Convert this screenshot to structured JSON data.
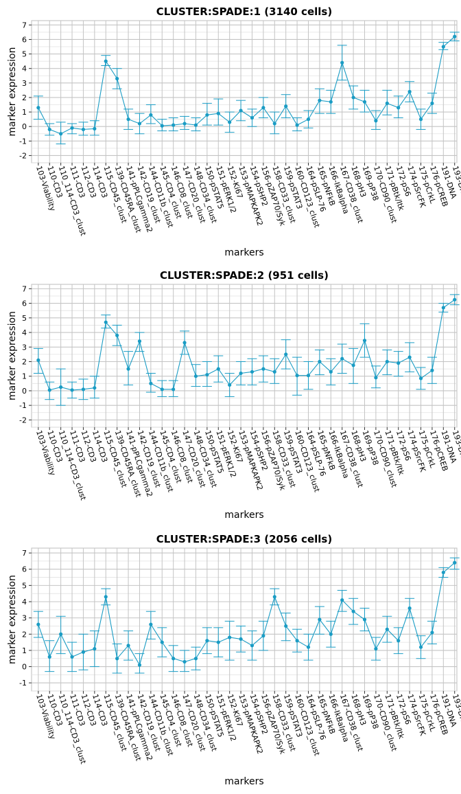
{
  "chart_data": [
    {
      "type": "line",
      "title": "CLUSTER:SPADE:1 (3140 cells)",
      "xlabel": "markers",
      "ylabel": "marker expression",
      "ylim": [
        -2.5,
        7.3
      ],
      "yticks": [
        -2,
        -1,
        0,
        1,
        2,
        3,
        4,
        5,
        6,
        7
      ],
      "grid": true,
      "line_color": "#1a9cc4",
      "categories": [
        "103-Viability",
        "110-CD3",
        "110_114-CD3_clust",
        "111-CD3",
        "112-CD3",
        "114-CD3",
        "115-CD45_clust",
        "139-CD45RA_clust",
        "141-pPLCgamma2",
        "142-CD19_clust",
        "144-CD11b_clust",
        "145-CD4_clust",
        "146-CD8_clust",
        "147-CD20_clust",
        "148-CD34_clust",
        "150-pSTAT5",
        "151-pERK1/2",
        "152-Ki67",
        "153-pMAPKAPK2",
        "154-pSHP2",
        "156-pZAP70/Syk",
        "158-CD33_clust",
        "159-pSTAT3",
        "160-CD123_clust",
        "164-pSLP-76",
        "165-pNFkB",
        "166-IkBalpha",
        "167-CD38_clust",
        "168-pH3",
        "169-pP38",
        "170-CD90_clust",
        "171-pBtk/Itk",
        "172-pS6",
        "174-pSrcFK",
        "175-pCrkL",
        "176-pCREB",
        "191-DNA",
        "193-DNA"
      ],
      "values": [
        1.3,
        -0.2,
        -0.5,
        -0.1,
        -0.2,
        -0.15,
        4.5,
        3.3,
        0.5,
        0.2,
        0.8,
        0.05,
        0.1,
        0.2,
        0.1,
        0.8,
        0.9,
        0.3,
        1.1,
        0.6,
        1.3,
        0.2,
        1.4,
        0.1,
        0.5,
        1.8,
        1.7,
        4.4,
        2.0,
        1.7,
        0.4,
        1.6,
        1.3,
        2.4,
        0.5,
        1.6,
        5.5,
        6.2
      ],
      "err_upper": [
        2.1,
        0.2,
        0.3,
        0.2,
        0.3,
        0.4,
        4.9,
        4.0,
        1.2,
        0.9,
        1.5,
        0.5,
        0.6,
        0.7,
        0.6,
        1.6,
        1.9,
        1.0,
        1.8,
        1.2,
        2.0,
        1.0,
        2.2,
        0.6,
        1.1,
        2.6,
        2.5,
        5.6,
        2.8,
        2.5,
        1.1,
        2.5,
        2.1,
        3.1,
        1.2,
        2.3,
        5.8,
        6.5
      ],
      "err_lower": [
        0.5,
        -0.6,
        -1.2,
        -0.5,
        -0.6,
        -0.6,
        4.2,
        2.6,
        -0.2,
        -0.5,
        0.2,
        -0.3,
        -0.3,
        -0.2,
        -0.3,
        0.1,
        0.1,
        -0.4,
        0.4,
        0.0,
        0.6,
        -0.5,
        0.6,
        -0.3,
        -0.1,
        0.9,
        0.9,
        3.2,
        1.2,
        1.0,
        -0.2,
        0.8,
        0.6,
        1.7,
        -0.2,
        0.9,
        5.3,
        5.9
      ]
    },
    {
      "type": "line",
      "title": "CLUSTER:SPADE:2 (951 cells)",
      "xlabel": "markers",
      "ylabel": "marker expression",
      "ylim": [
        -2.5,
        7.3
      ],
      "yticks": [
        -2,
        -1,
        0,
        1,
        2,
        3,
        4,
        5,
        6,
        7
      ],
      "grid": true,
      "line_color": "#1a9cc4",
      "categories": [
        "103-Viability",
        "110-CD3",
        "110_114-CD3_clust",
        "111-CD3",
        "112-CD3",
        "114-CD3",
        "115-CD45_clust",
        "139-CD45RA_clust",
        "141-pPLCgamma2",
        "142-CD19_clust",
        "144-CD11b_clust",
        "145-CD4_clust",
        "146-CD8_clust",
        "147-CD20_clust",
        "148-CD34_clust",
        "150-pSTAT5",
        "151-pERK1/2",
        "152-Ki67",
        "153-pMAPKAPK2",
        "154-pSHP2",
        "156-pZAP70/Syk",
        "158-CD33_clust",
        "159-pSTAT3",
        "160-CD123_clust",
        "164-pSLP-76",
        "165-pNFkB",
        "166-IkBalpha",
        "167-CD38_clust",
        "168-pH3",
        "169-pP38",
        "170-CD90_clust",
        "171-pBtk/Itk",
        "172-pS6",
        "174-pSrcFK",
        "175-pCrkL",
        "176-pCREB",
        "191-DNA",
        "193-DNA"
      ],
      "values": [
        2.1,
        0.05,
        0.25,
        0.05,
        0.1,
        0.2,
        4.7,
        3.8,
        1.5,
        3.4,
        0.5,
        0.1,
        0.1,
        3.3,
        1.0,
        1.1,
        1.5,
        0.4,
        1.2,
        1.3,
        1.5,
        1.3,
        2.5,
        1.05,
        1.05,
        2.0,
        1.3,
        2.2,
        1.75,
        3.45,
        0.9,
        2.0,
        1.9,
        2.3,
        0.85,
        1.4,
        5.7,
        6.25
      ],
      "err_upper": [
        2.9,
        0.6,
        1.5,
        0.6,
        0.8,
        1.0,
        5.2,
        4.5,
        2.7,
        4.0,
        1.2,
        0.7,
        0.7,
        4.1,
        1.8,
        2.0,
        2.4,
        1.2,
        2.0,
        2.2,
        2.4,
        2.2,
        3.5,
        2.3,
        2.0,
        2.8,
        2.2,
        3.2,
        2.9,
        4.6,
        1.7,
        2.8,
        2.7,
        3.3,
        1.6,
        2.3,
        6.0,
        6.6
      ],
      "err_lower": [
        1.2,
        -0.6,
        -1.0,
        -0.5,
        -0.6,
        -0.5,
        4.3,
        3.1,
        0.4,
        2.7,
        -0.1,
        -0.4,
        -0.4,
        2.5,
        0.3,
        0.3,
        0.6,
        -0.4,
        0.4,
        0.4,
        0.6,
        0.5,
        1.5,
        -0.3,
        0.1,
        1.1,
        0.4,
        1.2,
        0.5,
        2.3,
        0.2,
        1.1,
        1.0,
        1.3,
        0.1,
        0.5,
        5.4,
        5.9
      ]
    },
    {
      "type": "line",
      "title": "CLUSTER:SPADE:3 (2056 cells)",
      "xlabel": "markers",
      "ylabel": "marker expression",
      "ylim": [
        -1.5,
        7.3
      ],
      "yticks": [
        -1,
        0,
        1,
        2,
        3,
        4,
        5,
        6,
        7
      ],
      "grid": true,
      "line_color": "#1a9cc4",
      "categories": [
        "103-Viability",
        "110-CD3",
        "110_114-CD3_clust",
        "111-CD3",
        "112-CD3",
        "114-CD3",
        "115-CD45_clust",
        "139-CD45RA_clust",
        "141-pPLCgamma2",
        "142-CD19_clust",
        "144-CD11b_clust",
        "145-CD4_clust",
        "146-CD8_clust",
        "147-CD20_clust",
        "148-CD34_clust",
        "150-pSTAT5",
        "151-pERK1/2",
        "152-Ki67",
        "153-pMAPKAPK2",
        "154-pSHP2",
        "156-pZAP70/Syk",
        "158-CD33_clust",
        "159-pSTAT3",
        "160-CD123_clust",
        "164-pSLP-76",
        "165-pNFkB",
        "166-IkBalpha",
        "167-CD38_clust",
        "168-pH3",
        "169-pP38",
        "170-CD90_clust",
        "171-pBtk/Itk",
        "172-pS6",
        "174-pSrcFK",
        "175-pCrkL",
        "176-pCREB",
        "191-DNA",
        "193-DNA"
      ],
      "values": [
        2.6,
        0.6,
        2.0,
        0.6,
        0.9,
        1.1,
        4.3,
        0.5,
        1.3,
        0.1,
        2.6,
        1.5,
        0.5,
        0.3,
        0.5,
        1.6,
        1.5,
        1.8,
        1.7,
        1.3,
        1.9,
        4.3,
        2.5,
        1.6,
        1.2,
        2.9,
        2.0,
        4.1,
        3.4,
        2.9,
        1.1,
        2.3,
        1.6,
        3.6,
        1.2,
        2.1,
        5.8,
        6.4
      ],
      "err_upper": [
        3.4,
        1.6,
        3.1,
        1.5,
        2.0,
        2.2,
        4.8,
        1.4,
        2.2,
        0.8,
        3.4,
        2.4,
        1.3,
        1.0,
        1.2,
        2.4,
        2.4,
        2.8,
        2.5,
        2.2,
        2.8,
        4.8,
        3.3,
        2.3,
        2.0,
        3.7,
        2.8,
        4.7,
        4.2,
        3.6,
        1.8,
        3.1,
        2.4,
        4.2,
        1.9,
        2.8,
        6.1,
        6.7
      ],
      "err_lower": [
        1.8,
        -0.3,
        0.8,
        -0.3,
        -0.2,
        0.0,
        3.8,
        -0.4,
        0.4,
        -0.4,
        1.7,
        0.6,
        -0.3,
        -0.3,
        -0.2,
        0.8,
        0.6,
        0.4,
        0.9,
        0.4,
        1.0,
        3.8,
        1.6,
        0.9,
        0.4,
        2.0,
        1.2,
        3.4,
        2.6,
        2.2,
        0.4,
        1.5,
        0.8,
        3.0,
        0.5,
        1.4,
        5.5,
        6.0
      ]
    }
  ]
}
